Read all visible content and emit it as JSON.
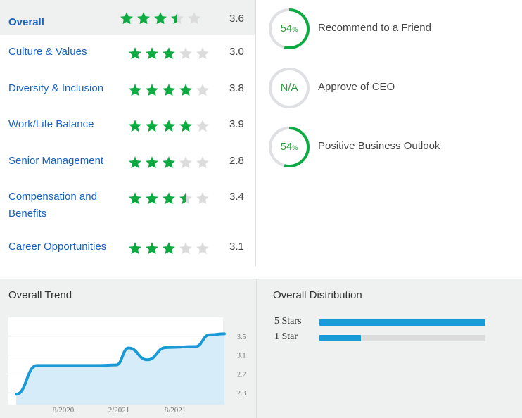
{
  "ratings": [
    {
      "label": "Overall",
      "score": "3.6",
      "stars": 3.5,
      "overall": true
    },
    {
      "label": "Culture & Values",
      "score": "3.0",
      "stars": 3
    },
    {
      "label": "Diversity & Inclusion",
      "score": "3.8",
      "stars": 4
    },
    {
      "label": "Work/Life Balance",
      "score": "3.9",
      "stars": 4
    },
    {
      "label": "Senior Management",
      "score": "2.8",
      "stars": 3
    },
    {
      "label": "Compensation and Benefits",
      "score": "3.4",
      "stars": 3.5
    },
    {
      "label": "Career Opportunities",
      "score": "3.1",
      "stars": 3
    }
  ],
  "metrics": [
    {
      "value": "54",
      "unit": "%",
      "label": "Recommend to a Friend",
      "percent": 54
    },
    {
      "value": "N/A",
      "unit": "",
      "label": "Approve of CEO",
      "percent": 0
    },
    {
      "value": "54",
      "unit": "%",
      "label": "Positive Business Outlook",
      "percent": 54
    }
  ],
  "colors": {
    "star": "#0caa41",
    "star_empty": "#dcdcdc",
    "ring": "#0caa41",
    "ring_track": "#dee0e3",
    "bar": "#1a9ad7",
    "link": "#1861bf"
  },
  "trend": {
    "title": "Overall Trend",
    "chart_data": {
      "type": "area",
      "x_tick_labels": [
        "8/2020",
        "2/2021",
        "8/2021"
      ],
      "y_tick_labels": [
        "3.5",
        "3.1",
        "2.7",
        "2.3"
      ],
      "y_ticks": [
        3.5,
        3.1,
        2.7,
        2.3
      ],
      "ylim": [
        2.05,
        3.75
      ],
      "points": [
        {
          "x": 0.0,
          "y": 2.27
        },
        {
          "x": 0.1,
          "y": 2.88
        },
        {
          "x": 0.22,
          "y": 2.88
        },
        {
          "x": 0.4,
          "y": 2.88
        },
        {
          "x": 0.48,
          "y": 2.89
        },
        {
          "x": 0.54,
          "y": 3.25
        },
        {
          "x": 0.63,
          "y": 3.0
        },
        {
          "x": 0.72,
          "y": 3.26
        },
        {
          "x": 0.86,
          "y": 3.28
        },
        {
          "x": 0.93,
          "y": 3.53
        },
        {
          "x": 1.0,
          "y": 3.55
        }
      ]
    }
  },
  "distribution": {
    "title": "Overall Distribution",
    "rows": [
      {
        "label": "5 Stars",
        "fraction": 1.0
      },
      {
        "label": "1 Star",
        "fraction": 0.25
      }
    ]
  }
}
